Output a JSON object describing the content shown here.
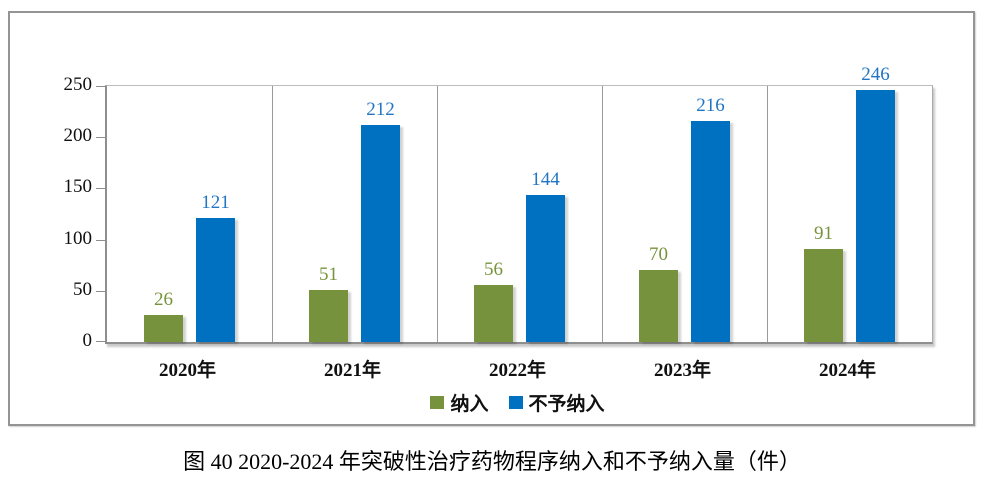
{
  "caption": "图 40 2020-2024 年突破性治疗药物程序纳入和不予纳入量（件）",
  "chart_data": {
    "type": "bar",
    "title": "图 40 2020-2024 年突破性治疗药物程序纳入和不予纳入量（件）",
    "categories": [
      "2020年",
      "2021年",
      "2022年",
      "2023年",
      "2024年"
    ],
    "series": [
      {
        "name": "纳入",
        "color": "#76923C",
        "label_color": "#77933C",
        "values": [
          26,
          51,
          56,
          70,
          91
        ]
      },
      {
        "name": "不予纳入",
        "color": "#0070C0",
        "label_color": "#2175C2",
        "values": [
          121,
          212,
          144,
          216,
          246
        ]
      }
    ],
    "xlabel": "",
    "ylabel": "",
    "ylim": [
      0,
      250
    ],
    "yticks": [
      0,
      50,
      100,
      150,
      200,
      250
    ],
    "grid": "vertical category dividers only",
    "legend_position": "bottom-center",
    "data_labels": true
  }
}
